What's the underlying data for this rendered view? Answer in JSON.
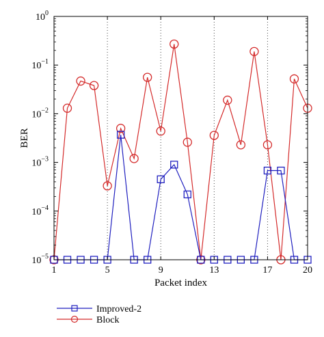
{
  "chart_data": {
    "type": "line",
    "title": "",
    "xlabel": "Packet index",
    "ylabel": "BER",
    "y_scale": "log",
    "xlim": [
      1,
      20
    ],
    "ylim": [
      1e-05,
      1
    ],
    "x_ticks": [
      1,
      5,
      9,
      13,
      17,
      20
    ],
    "y_ticks": [
      {
        "value": 1e-05,
        "base": "10",
        "exp": "−5"
      },
      {
        "value": 0.0001,
        "base": "10",
        "exp": "−4"
      },
      {
        "value": 0.001,
        "base": "10",
        "exp": "−3"
      },
      {
        "value": 0.01,
        "base": "10",
        "exp": "−2"
      },
      {
        "value": 0.1,
        "base": "10",
        "exp": "−1"
      },
      {
        "value": 1,
        "base": "10",
        "exp": "0"
      }
    ],
    "vertical_dotted_lines_at": [
      5,
      9,
      13,
      17
    ],
    "grid": false,
    "legend_position": "below",
    "x": [
      1,
      2,
      3,
      4,
      5,
      6,
      7,
      8,
      9,
      10,
      11,
      12,
      13,
      14,
      15,
      16,
      17,
      18,
      19,
      20
    ],
    "series": [
      {
        "name": "Improved-2",
        "color": "#1f1fbf",
        "marker": "square",
        "values": [
          1e-05,
          1e-05,
          1e-05,
          1e-05,
          1e-05,
          0.0037,
          1e-05,
          1e-05,
          0.00045,
          0.0009,
          0.00022,
          1e-05,
          1e-05,
          1e-05,
          1e-05,
          1e-05,
          0.00068,
          0.00068,
          1e-05,
          1e-05
        ]
      },
      {
        "name": "Block",
        "color": "#d42a2a",
        "marker": "circle",
        "values": [
          1e-05,
          0.013,
          0.047,
          0.038,
          0.00033,
          0.005,
          0.0012,
          0.056,
          0.0044,
          0.27,
          0.0026,
          1e-05,
          0.0036,
          0.019,
          0.0023,
          0.19,
          0.0023,
          1e-05,
          0.052,
          0.013
        ]
      }
    ]
  }
}
